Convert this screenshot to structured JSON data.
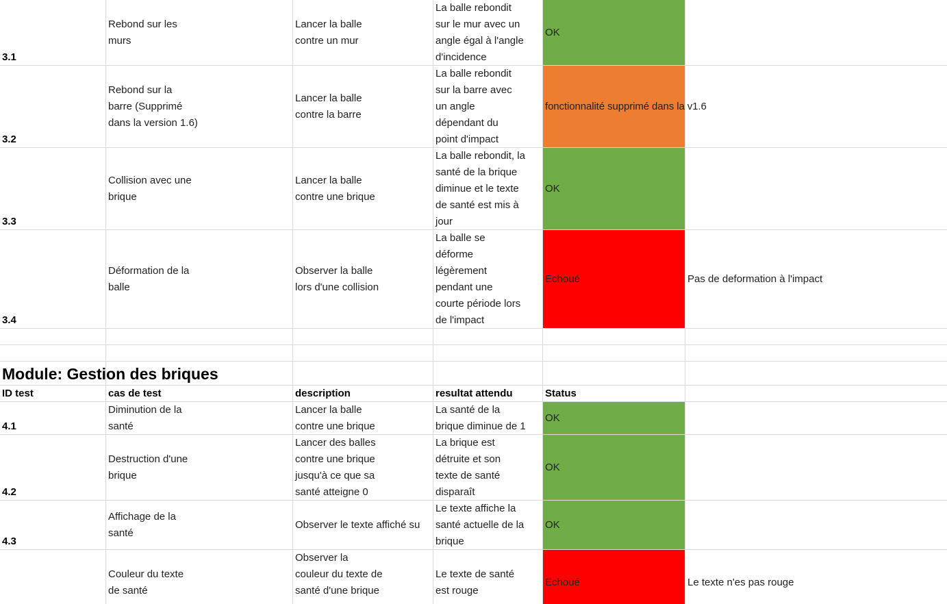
{
  "colors": {
    "ok": "#70ad47",
    "removed": "#ed7d31",
    "failed": "#ff0000",
    "grid": "#d9d9d9"
  },
  "module_header": "Module: Gestion des briques",
  "columns": {
    "id": "ID test",
    "case": "cas de test",
    "description": "description",
    "expected": "resultat attendu",
    "status": "Status"
  },
  "rows": [
    {
      "id": "3.1",
      "case": "Rebond sur les\nmurs",
      "description": "Lancer la balle\ncontre un mur",
      "expected": "La balle rebondit\nsur le mur avec un\nangle égal à l'angle\nd'incidence",
      "status": "OK",
      "comment": ""
    },
    {
      "id": "3.2",
      "case": "Rebond sur la\nbarre (Supprimé\ndans la version 1.6)",
      "description": "Lancer la balle\ncontre la barre",
      "expected": "La balle rebondit\nsur la barre avec\nun angle\ndépendant du\npoint d'impact",
      "status": "fonctionnalité supprimé dans la v1.6",
      "comment": ""
    },
    {
      "id": "3.3",
      "case": "Collision avec une\nbrique",
      "description": "Lancer la balle\ncontre une brique",
      "expected": "La balle rebondit, la\nsanté de la brique\ndiminue et le texte\nde santé est mis à\njour",
      "status": "OK",
      "comment": ""
    },
    {
      "id": "3.4",
      "case": "Déformation de la\nballe",
      "description": "Observer la balle\nlors d'une collision",
      "expected": "La balle se\ndéforme\nlégèrement\npendant une\ncourte période lors\nde l'impact",
      "status": "Echoué",
      "comment": "Pas de deformation à l'impact"
    },
    {
      "id": "4.1",
      "case": "Diminution de la\nsanté",
      "description": "Lancer la balle\ncontre une brique",
      "expected": "La santé de la\nbrique diminue de 1",
      "status": "OK",
      "comment": ""
    },
    {
      "id": "4.2",
      "case": "Destruction d'une\nbrique",
      "description": "Lancer des balles\ncontre une brique\njusqu'à ce que sa\nsanté atteigne 0",
      "expected": "La brique est\ndétruite et son\ntexte de santé\ndisparaît",
      "status": "OK",
      "comment": ""
    },
    {
      "id": "4.3",
      "case": "Affichage de la\nsanté",
      "description": "Observer le texte affiché su",
      "expected": "Le texte affiche la\nsanté actuelle de la\nbrique",
      "status": "OK",
      "comment": ""
    },
    {
      "id": "",
      "case": "Couleur du texte\nde santé",
      "description": "Observer la\ncouleur du texte de\nsanté d'une brique",
      "expected": "Le texte de santé\nest rouge",
      "status": "Echoué",
      "comment": "Le texte n'es pas rouge"
    }
  ]
}
